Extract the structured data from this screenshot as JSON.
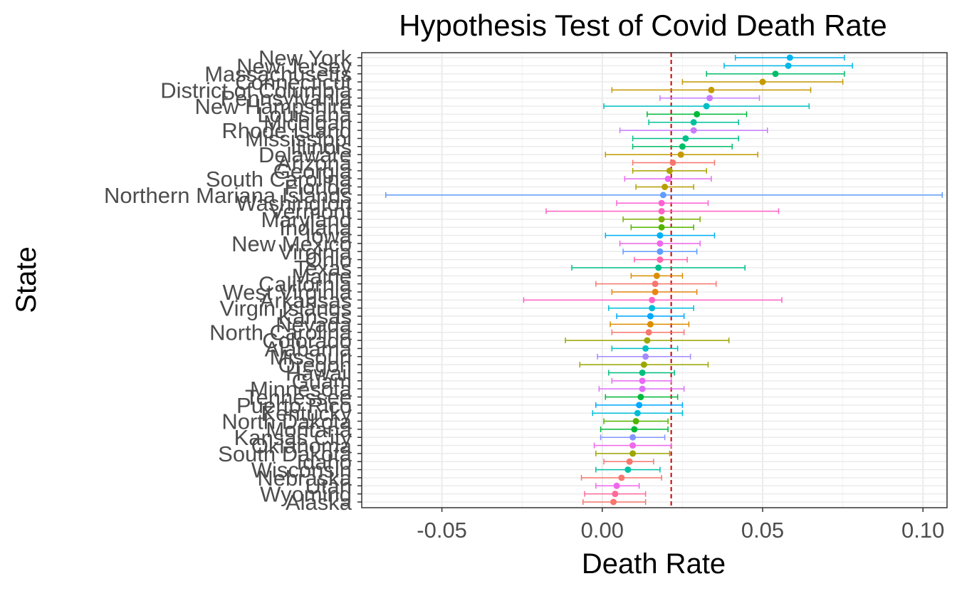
{
  "chart_data": {
    "type": "scatter",
    "title": "Hypothesis Test of Covid Death Rate",
    "xlabel": "Death Rate",
    "ylabel": "State",
    "xlim": [
      -0.075,
      0.1075
    ],
    "xticks": [
      -0.05,
      0.0,
      0.05,
      0.1
    ],
    "xtick_labels": [
      "-0.05",
      "0.00",
      "0.05",
      "0.10"
    ],
    "grid": true,
    "legend": "none",
    "reference_line": {
      "x": 0.0215,
      "color": "#cc0000",
      "style": "dashed"
    },
    "series": [
      {
        "state": "New York",
        "value": 0.0585,
        "lower": 0.0415,
        "upper": 0.0755,
        "color": "#00b4f0"
      },
      {
        "state": "New Jersey",
        "value": 0.058,
        "lower": 0.038,
        "upper": 0.078,
        "color": "#00b8e5"
      },
      {
        "state": "Massachusetts",
        "value": 0.054,
        "lower": 0.0325,
        "upper": 0.0755,
        "color": "#00be67"
      },
      {
        "state": "Connecticut",
        "value": 0.05,
        "lower": 0.025,
        "upper": 0.075,
        "color": "#c49a00"
      },
      {
        "state": "District of Columbia",
        "value": 0.034,
        "lower": 0.003,
        "upper": 0.065,
        "color": "#c49a00"
      },
      {
        "state": "Pennsylvania",
        "value": 0.0335,
        "lower": 0.018,
        "upper": 0.049,
        "color": "#c77cff"
      },
      {
        "state": "New Hampshire",
        "value": 0.0325,
        "lower": 0.0005,
        "upper": 0.0645,
        "color": "#00bfc4"
      },
      {
        "state": "Louisiana",
        "value": 0.0295,
        "lower": 0.014,
        "upper": 0.045,
        "color": "#00ba38"
      },
      {
        "state": "Michigan",
        "value": 0.0285,
        "lower": 0.0145,
        "upper": 0.0425,
        "color": "#00c19a"
      },
      {
        "state": "Rhode Island",
        "value": 0.0285,
        "lower": 0.0055,
        "upper": 0.0515,
        "color": "#c77cff"
      },
      {
        "state": "Mississippi",
        "value": 0.026,
        "lower": 0.0095,
        "upper": 0.0425,
        "color": "#00c08b"
      },
      {
        "state": "Illinois",
        "value": 0.025,
        "lower": 0.0095,
        "upper": 0.0405,
        "color": "#00be67"
      },
      {
        "state": "Delaware",
        "value": 0.0245,
        "lower": 0.001,
        "upper": 0.0485,
        "color": "#c49a00"
      },
      {
        "state": "Arizona",
        "value": 0.022,
        "lower": 0.0095,
        "upper": 0.035,
        "color": "#f8766d"
      },
      {
        "state": "Georgia",
        "value": 0.021,
        "lower": 0.0095,
        "upper": 0.0325,
        "color": "#aea200"
      },
      {
        "state": "South Carolina",
        "value": 0.0205,
        "lower": 0.007,
        "upper": 0.034,
        "color": "#e76bf3"
      },
      {
        "state": "Florida",
        "value": 0.0195,
        "lower": 0.0105,
        "upper": 0.0285,
        "color": "#b79f00"
      },
      {
        "state": "Northern Mariana Islands",
        "value": 0.019,
        "lower": -0.0675,
        "upper": 0.106,
        "color": "#619cff"
      },
      {
        "state": "Washington",
        "value": 0.0185,
        "lower": 0.0045,
        "upper": 0.033,
        "color": "#fd61d1"
      },
      {
        "state": "Vermont",
        "value": 0.0185,
        "lower": -0.0175,
        "upper": 0.055,
        "color": "#ff61c3"
      },
      {
        "state": "Maryland",
        "value": 0.0185,
        "lower": 0.0065,
        "upper": 0.0305,
        "color": "#7cae00"
      },
      {
        "state": "Indiana",
        "value": 0.0185,
        "lower": 0.009,
        "upper": 0.0285,
        "color": "#53b400"
      },
      {
        "state": "Iowa",
        "value": 0.018,
        "lower": 0.001,
        "upper": 0.035,
        "color": "#00b0f6"
      },
      {
        "state": "New Mexico",
        "value": 0.018,
        "lower": 0.0055,
        "upper": 0.0305,
        "color": "#f066ea"
      },
      {
        "state": "Virginia",
        "value": 0.018,
        "lower": 0.0065,
        "upper": 0.0295,
        "color": "#619cff"
      },
      {
        "state": "Ohio",
        "value": 0.018,
        "lower": 0.01,
        "upper": 0.0265,
        "color": "#ff64b0"
      },
      {
        "state": "Texas",
        "value": 0.0175,
        "lower": -0.0095,
        "upper": 0.0445,
        "color": "#00c08b"
      },
      {
        "state": "Maine",
        "value": 0.017,
        "lower": 0.009,
        "upper": 0.025,
        "color": "#db8e00"
      },
      {
        "state": "California",
        "value": 0.0165,
        "lower": -0.002,
        "upper": 0.0355,
        "color": "#f8766d"
      },
      {
        "state": "West Virginia",
        "value": 0.0165,
        "lower": 0.003,
        "upper": 0.0295,
        "color": "#e68613"
      },
      {
        "state": "Arkansas",
        "value": 0.0155,
        "lower": -0.0245,
        "upper": 0.056,
        "color": "#ff61c3"
      },
      {
        "state": "Virgin Islands",
        "value": 0.0155,
        "lower": 0.002,
        "upper": 0.0285,
        "color": "#00bcd8"
      },
      {
        "state": "Kansas",
        "value": 0.015,
        "lower": 0.0045,
        "upper": 0.0255,
        "color": "#00a9ff"
      },
      {
        "state": "Nevada",
        "value": 0.015,
        "lower": 0.0025,
        "upper": 0.027,
        "color": "#db8e00"
      },
      {
        "state": "North Carolina",
        "value": 0.0145,
        "lower": 0.003,
        "upper": 0.0255,
        "color": "#f8766d"
      },
      {
        "state": "Colorado",
        "value": 0.014,
        "lower": -0.0115,
        "upper": 0.0395,
        "color": "#9ca700"
      },
      {
        "state": "Alabama",
        "value": 0.0135,
        "lower": 0.003,
        "upper": 0.0235,
        "color": "#00bfc4"
      },
      {
        "state": "Missouri",
        "value": 0.0135,
        "lower": -0.0015,
        "upper": 0.0275,
        "color": "#a58aff"
      },
      {
        "state": "Oregon",
        "value": 0.013,
        "lower": -0.007,
        "upper": 0.033,
        "color": "#9ca700"
      },
      {
        "state": "Hawaii",
        "value": 0.0125,
        "lower": 0.002,
        "upper": 0.0225,
        "color": "#00bf7d"
      },
      {
        "state": "Guam",
        "value": 0.0125,
        "lower": 0.003,
        "upper": 0.0215,
        "color": "#e76bf3"
      },
      {
        "state": "Minnesota",
        "value": 0.0125,
        "lower": -0.001,
        "upper": 0.0255,
        "color": "#df70f8"
      },
      {
        "state": "Tennessee",
        "value": 0.012,
        "lower": 0.001,
        "upper": 0.0235,
        "color": "#00ba38"
      },
      {
        "state": "Puerto Rico",
        "value": 0.0115,
        "lower": -0.002,
        "upper": 0.025,
        "color": "#00a9ff"
      },
      {
        "state": "Kentucky",
        "value": 0.011,
        "lower": -0.003,
        "upper": 0.025,
        "color": "#00bcd8"
      },
      {
        "state": "North Dakota",
        "value": 0.0105,
        "lower": 0.0005,
        "upper": 0.0205,
        "color": "#53b400"
      },
      {
        "state": "Montana",
        "value": 0.01,
        "lower": -0.0005,
        "upper": 0.0205,
        "color": "#00ba38"
      },
      {
        "state": "Kansas City",
        "value": 0.0095,
        "lower": -0.0005,
        "upper": 0.0195,
        "color": "#8494ff"
      },
      {
        "state": "Oklahoma",
        "value": 0.0095,
        "lower": -0.0025,
        "upper": 0.0215,
        "color": "#ef67eb"
      },
      {
        "state": "South Dakota",
        "value": 0.0095,
        "lower": -0.002,
        "upper": 0.021,
        "color": "#9ca700"
      },
      {
        "state": "Idaho",
        "value": 0.0085,
        "lower": 0.0005,
        "upper": 0.016,
        "color": "#f8766d"
      },
      {
        "state": "Wisconsin",
        "value": 0.008,
        "lower": -0.002,
        "upper": 0.018,
        "color": "#00c1a7"
      },
      {
        "state": "Nebraska",
        "value": 0.006,
        "lower": -0.0065,
        "upper": 0.0185,
        "color": "#f8766d"
      },
      {
        "state": "Utah",
        "value": 0.0045,
        "lower": -0.002,
        "upper": 0.0115,
        "color": "#ef67eb"
      },
      {
        "state": "Wyoming",
        "value": 0.004,
        "lower": -0.0055,
        "upper": 0.0135,
        "color": "#ff6a98"
      },
      {
        "state": "Alaska",
        "value": 0.0035,
        "lower": -0.006,
        "upper": 0.0135,
        "color": "#f8766d"
      }
    ]
  }
}
